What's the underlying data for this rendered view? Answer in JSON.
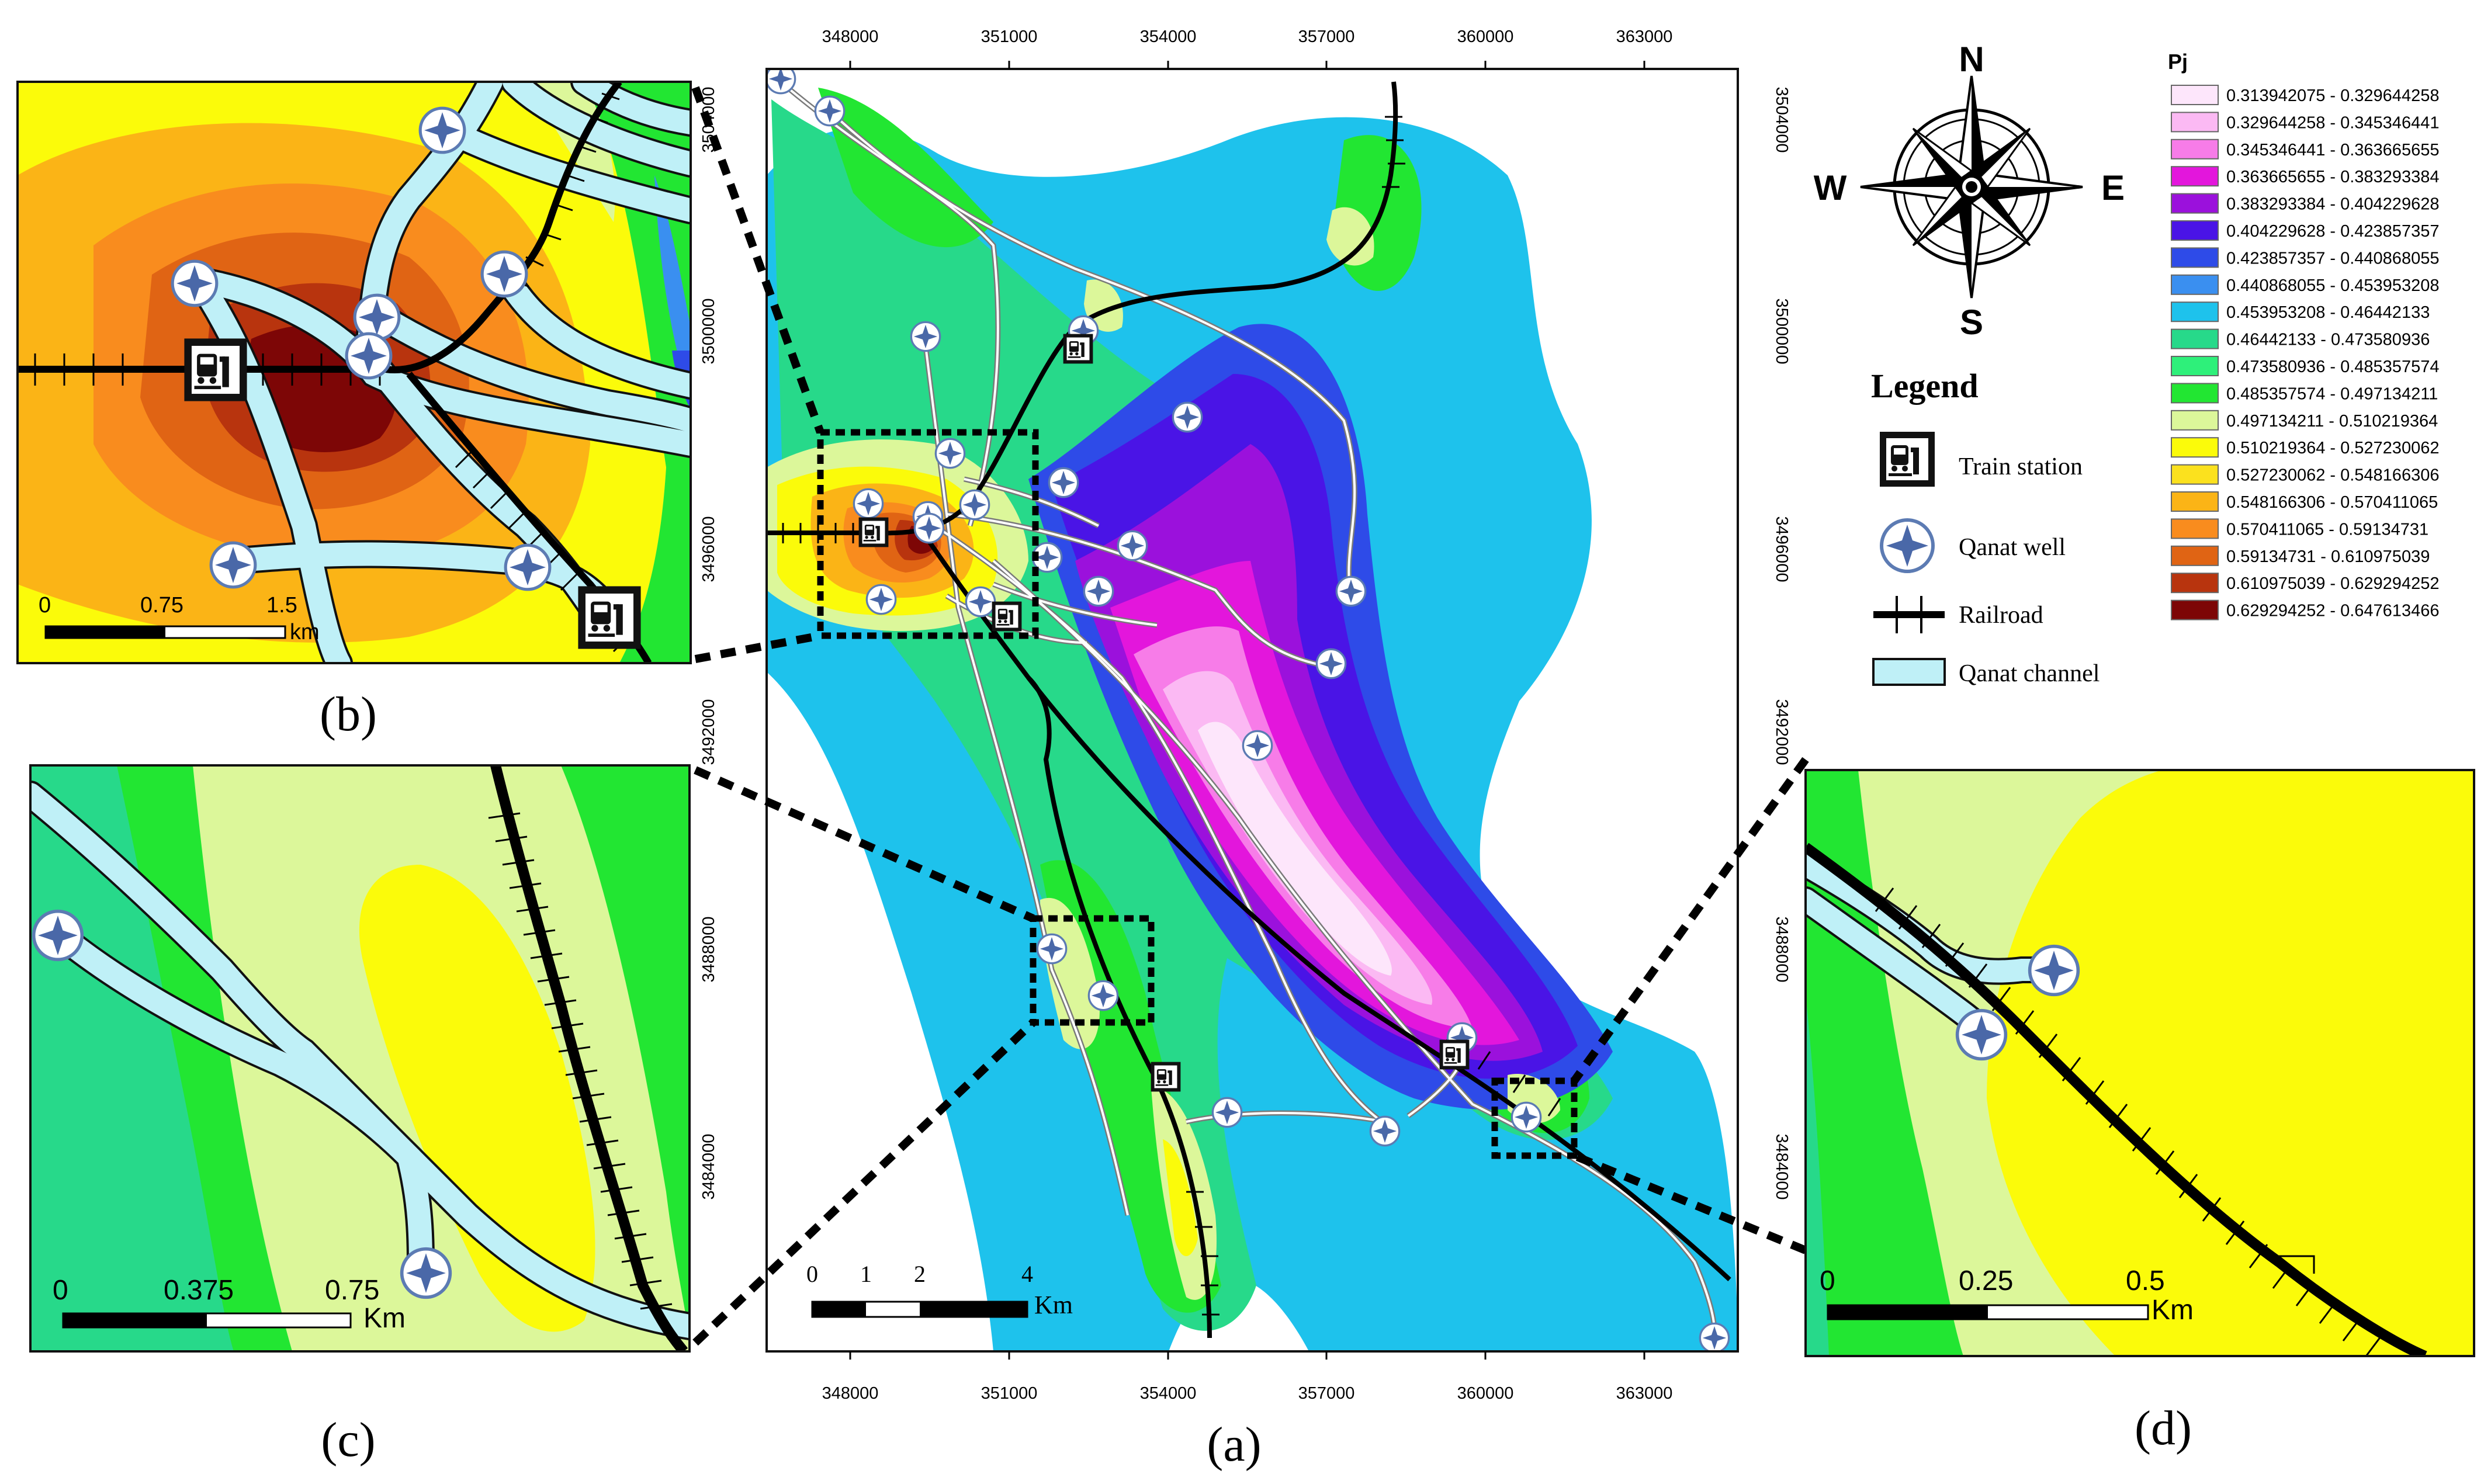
{
  "main_map": {
    "caption": "(a)",
    "x_ticks": [
      "348000",
      "351000",
      "354000",
      "357000",
      "360000",
      "363000"
    ],
    "y_ticks": [
      "3504000",
      "3500000",
      "3496000",
      "3492000",
      "3488000",
      "3484000"
    ],
    "scalebar": {
      "labels": [
        "0",
        "1",
        "2",
        "4"
      ],
      "unit": "Km"
    }
  },
  "insets": [
    {
      "id": "b",
      "caption": "(b)",
      "scalebar": {
        "labels": [
          "0",
          "0.75",
          "1.5"
        ],
        "unit": "km"
      }
    },
    {
      "id": "c",
      "caption": "(c)",
      "scalebar": {
        "labels": [
          "0",
          "0.375",
          "0.75"
        ],
        "unit": "Km"
      }
    },
    {
      "id": "d",
      "caption": "(d)",
      "scalebar": {
        "labels": [
          "0",
          "0.25",
          "0.5"
        ],
        "unit": "Km"
      }
    }
  ],
  "north_arrow": {
    "n": "N",
    "s": "S",
    "e": "E",
    "w": "W"
  },
  "legend": {
    "title": "Legend",
    "items": [
      {
        "label": "Train station",
        "icon": "train-station-icon"
      },
      {
        "label": "Qanat well",
        "icon": "qanat-well-icon"
      },
      {
        "label": "Railroad",
        "icon": "railroad-icon"
      },
      {
        "label": "Qanat channel",
        "icon": "qanat-channel-icon"
      }
    ]
  },
  "pj_legend": {
    "title": "Pj",
    "classes": [
      {
        "range": "0.313942075 - 0.329644258",
        "color": "#fde6fb"
      },
      {
        "range": "0.329644258 - 0.345346441",
        "color": "#fbb9f3"
      },
      {
        "range": "0.345346441 - 0.363665655",
        "color": "#f77ce8"
      },
      {
        "range": "0.363665655 - 0.383293384",
        "color": "#e316dc"
      },
      {
        "range": "0.383293384 - 0.404229628",
        "color": "#9b11dc"
      },
      {
        "range": "0.404229628 - 0.423857357",
        "color": "#4a14e6"
      },
      {
        "range": "0.423857357 - 0.440868055",
        "color": "#2e4be8"
      },
      {
        "range": "0.440868055 - 0.453953208",
        "color": "#3a8ff0"
      },
      {
        "range": "0.453953208 - 0.46442133",
        "color": "#1ec2ec"
      },
      {
        "range": "0.46442133 - 0.473580936",
        "color": "#27d98a"
      },
      {
        "range": "0.473580936 - 0.485357574",
        "color": "#2ef07a"
      },
      {
        "range": "0.485357574 - 0.497134211",
        "color": "#22e632"
      },
      {
        "range": "0.497134211 - 0.510219364",
        "color": "#dcf79a"
      },
      {
        "range": "0.510219364 - 0.527230062",
        "color": "#fbfb0a"
      },
      {
        "range": "0.527230062 - 0.548166306",
        "color": "#fbe11e"
      },
      {
        "range": "0.548166306 - 0.570411065",
        "color": "#fbb416"
      },
      {
        "range": "0.570411065 - 0.59134731",
        "color": "#f98c1e"
      },
      {
        "range": "0.59134731 - 0.610975039",
        "color": "#e06414"
      },
      {
        "range": "0.610975039 - 0.629294252",
        "color": "#b8340e"
      },
      {
        "range": "0.629294252 - 0.647613466",
        "color": "#7d0606"
      }
    ]
  }
}
